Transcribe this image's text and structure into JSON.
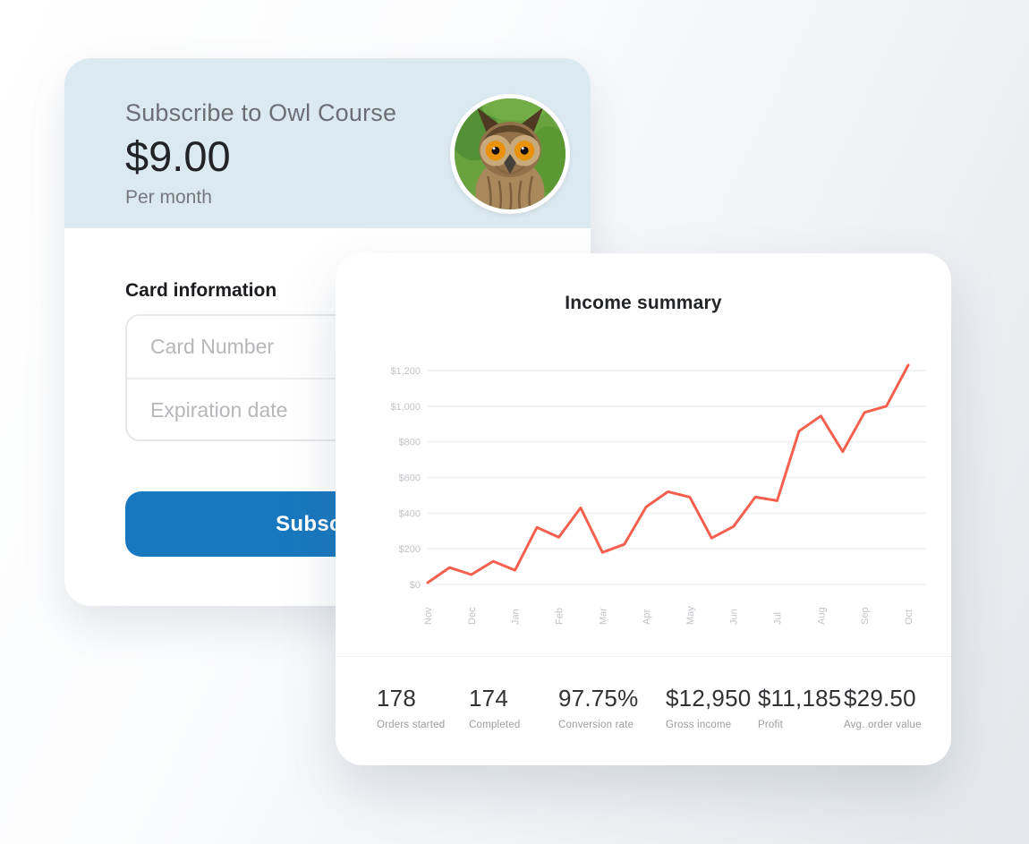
{
  "subscribe_card": {
    "title": "Subscribe to Owl Course",
    "price": "$9.00",
    "period": "Per month",
    "avatar_icon": "owl-photo",
    "section_heading": "Card information",
    "inputs": [
      {
        "placeholder": "Card Number",
        "value": ""
      },
      {
        "placeholder": "Expiration date",
        "value": ""
      }
    ],
    "button_label": "Subscribe",
    "colors": {
      "header_bg": "#dbe9f1",
      "button_bg": "#1878bf"
    }
  },
  "income_card": {
    "title": "Income summary",
    "stats": [
      {
        "value": "178",
        "label": "Orders started"
      },
      {
        "value": "174",
        "label": "Completed"
      },
      {
        "value": "97.75%",
        "label": "Conversion rate"
      },
      {
        "value": "$12,950",
        "label": "Gross income"
      },
      {
        "value": "$11,185",
        "label": "Profit"
      },
      {
        "value": "$29.50",
        "label": "Avg. order value"
      }
    ]
  },
  "chart_data": {
    "type": "line",
    "title": "Income summary",
    "x_tick_labels": [
      "Nov",
      "Dec",
      "Jan",
      "Feb",
      "Mar",
      "Apr",
      "May",
      "Jun",
      "Jul",
      "Aug",
      "Sep",
      "Oct"
    ],
    "y_tick_labels": [
      "$0",
      "$200",
      "$400",
      "$600",
      "$800",
      "$1,000",
      "$1,200"
    ],
    "ylim": [
      0,
      1200
    ],
    "y_step": 200,
    "points_per_month": 2,
    "values": [
      10,
      95,
      55,
      130,
      80,
      320,
      265,
      430,
      180,
      225,
      435,
      520,
      490,
      260,
      325,
      490,
      470,
      860,
      945,
      745,
      965,
      1000,
      1230
    ],
    "line_color": "#f7604e",
    "grid_color": "#eef0f4",
    "axis_label_color": "#c1c3c7",
    "grid": "horizontal",
    "legend": "none"
  }
}
